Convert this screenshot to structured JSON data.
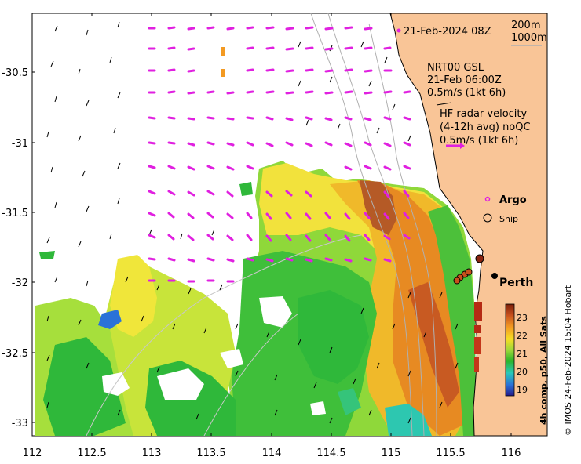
{
  "map": {
    "date_label": "21-Feb-2024 08Z",
    "depth_legend": [
      "200m",
      "1000m"
    ],
    "model_legend": {
      "lines": [
        "NRT00 GSL",
        "21-Feb 06:00Z",
        "0.5m/s (1kt 6h)"
      ]
    },
    "radar_legend": {
      "lines": [
        "HF radar velocity",
        "(4-12h avg) noQC",
        "0.5m/s (1kt 6h)"
      ]
    },
    "markers": {
      "argo": "Argo",
      "ship": "Ship",
      "city": "Perth"
    },
    "colorbar": {
      "title": "4h comp, p50, All Sats",
      "ticks": [
        "23",
        "22",
        "21",
        "20",
        "19"
      ]
    },
    "credit": "© IMOS 24-Feb-2024 15:04 Hobart",
    "x_ticks": [
      "112",
      "112.5",
      "113",
      "113.5",
      "114",
      "114.5",
      "115",
      "115.5",
      "116"
    ],
    "y_ticks": [
      "-30.5",
      "-31",
      "-31.5",
      "-32",
      "-32.5",
      "-33"
    ],
    "colors": {
      "land": "#f9c597",
      "radar_arrow": "#e020e0",
      "argo": "#e020e0",
      "bathy": "#b0b0b0"
    }
  }
}
